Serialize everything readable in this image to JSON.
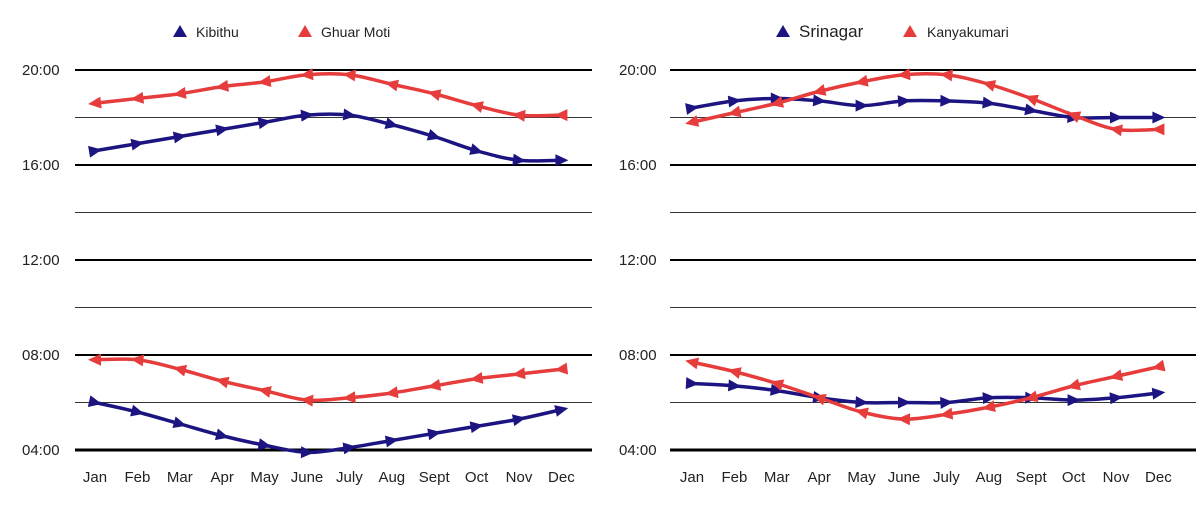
{
  "colors": {
    "navy": "#1c1581",
    "red": "#e63c3c",
    "axis": "#000000",
    "grid": "#333333"
  },
  "chart_data": [
    {
      "type": "line",
      "title": "",
      "xlabel": "",
      "ylabel": "",
      "y_unit": "hours (HH:MM)",
      "ylim": [
        4,
        20
      ],
      "y_tick_labels": [
        "04:00",
        "08:00",
        "12:00",
        "16:00",
        "20:00"
      ],
      "categories": [
        "Jan",
        "Feb",
        "Mar",
        "Apr",
        "May",
        "June",
        "July",
        "Aug",
        "Sept",
        "Oct",
        "Nov",
        "Dec"
      ],
      "grid": true,
      "legend_position": "top-left",
      "legend": [
        {
          "label": "Kibithu",
          "color": "#1c1581",
          "size": "small"
        },
        {
          "label": "Ghuar Moti",
          "color": "#e63c3c",
          "size": "small"
        }
      ],
      "series": [
        {
          "name": "Kibithu",
          "color": "#1c1581",
          "kind": "sunset",
          "values": [
            16.6,
            16.9,
            17.2,
            17.5,
            17.8,
            18.1,
            18.1,
            17.7,
            17.2,
            16.6,
            16.2,
            16.2
          ]
        },
        {
          "name": "Ghuar Moti",
          "color": "#e63c3c",
          "kind": "sunset",
          "values": [
            18.6,
            18.8,
            19.0,
            19.3,
            19.5,
            19.8,
            19.8,
            19.4,
            19.0,
            18.5,
            18.1,
            18.1
          ]
        },
        {
          "name": "Kibithu",
          "color": "#1c1581",
          "kind": "sunrise",
          "values": [
            6.0,
            5.6,
            5.1,
            4.6,
            4.2,
            3.9,
            4.1,
            4.4,
            4.7,
            5.0,
            5.3,
            5.7
          ]
        },
        {
          "name": "Ghuar Moti",
          "color": "#e63c3c",
          "kind": "sunrise",
          "values": [
            7.8,
            7.8,
            7.4,
            6.9,
            6.5,
            6.1,
            6.2,
            6.4,
            6.7,
            7.0,
            7.2,
            7.4
          ]
        }
      ]
    },
    {
      "type": "line",
      "title": "",
      "xlabel": "",
      "ylabel": "",
      "y_unit": "hours (HH:MM)",
      "ylim": [
        4,
        20
      ],
      "y_tick_labels": [
        "04:00",
        "08:00",
        "12:00",
        "16:00",
        "20:00"
      ],
      "categories": [
        "Jan",
        "Feb",
        "Mar",
        "Apr",
        "May",
        "June",
        "July",
        "Aug",
        "Sept",
        "Oct",
        "Nov",
        "Dec"
      ],
      "grid": true,
      "legend_position": "top-center",
      "legend": [
        {
          "label": "Srinagar",
          "color": "#1c1581",
          "size": "large"
        },
        {
          "label": "Kanyakumari",
          "color": "#e63c3c",
          "size": "small"
        }
      ],
      "series": [
        {
          "name": "Srinagar",
          "color": "#1c1581",
          "kind": "sunset",
          "values": [
            18.4,
            18.7,
            18.8,
            18.7,
            18.5,
            18.7,
            18.7,
            18.6,
            18.3,
            18.0,
            18.0,
            18.0
          ]
        },
        {
          "name": "Kanyakumari",
          "color": "#e63c3c",
          "kind": "sunset",
          "values": [
            17.8,
            18.2,
            18.6,
            19.1,
            19.5,
            19.8,
            19.8,
            19.4,
            18.8,
            18.1,
            17.5,
            17.5
          ]
        },
        {
          "name": "Srinagar",
          "color": "#1c1581",
          "kind": "sunrise",
          "values": [
            6.8,
            6.7,
            6.5,
            6.2,
            6.0,
            6.0,
            6.0,
            6.2,
            6.2,
            6.1,
            6.2,
            6.4
          ]
        },
        {
          "name": "Kanyakumari",
          "color": "#e63c3c",
          "kind": "sunrise",
          "values": [
            7.7,
            7.3,
            6.8,
            6.2,
            5.6,
            5.3,
            5.5,
            5.8,
            6.2,
            6.7,
            7.1,
            7.5
          ]
        }
      ]
    }
  ]
}
